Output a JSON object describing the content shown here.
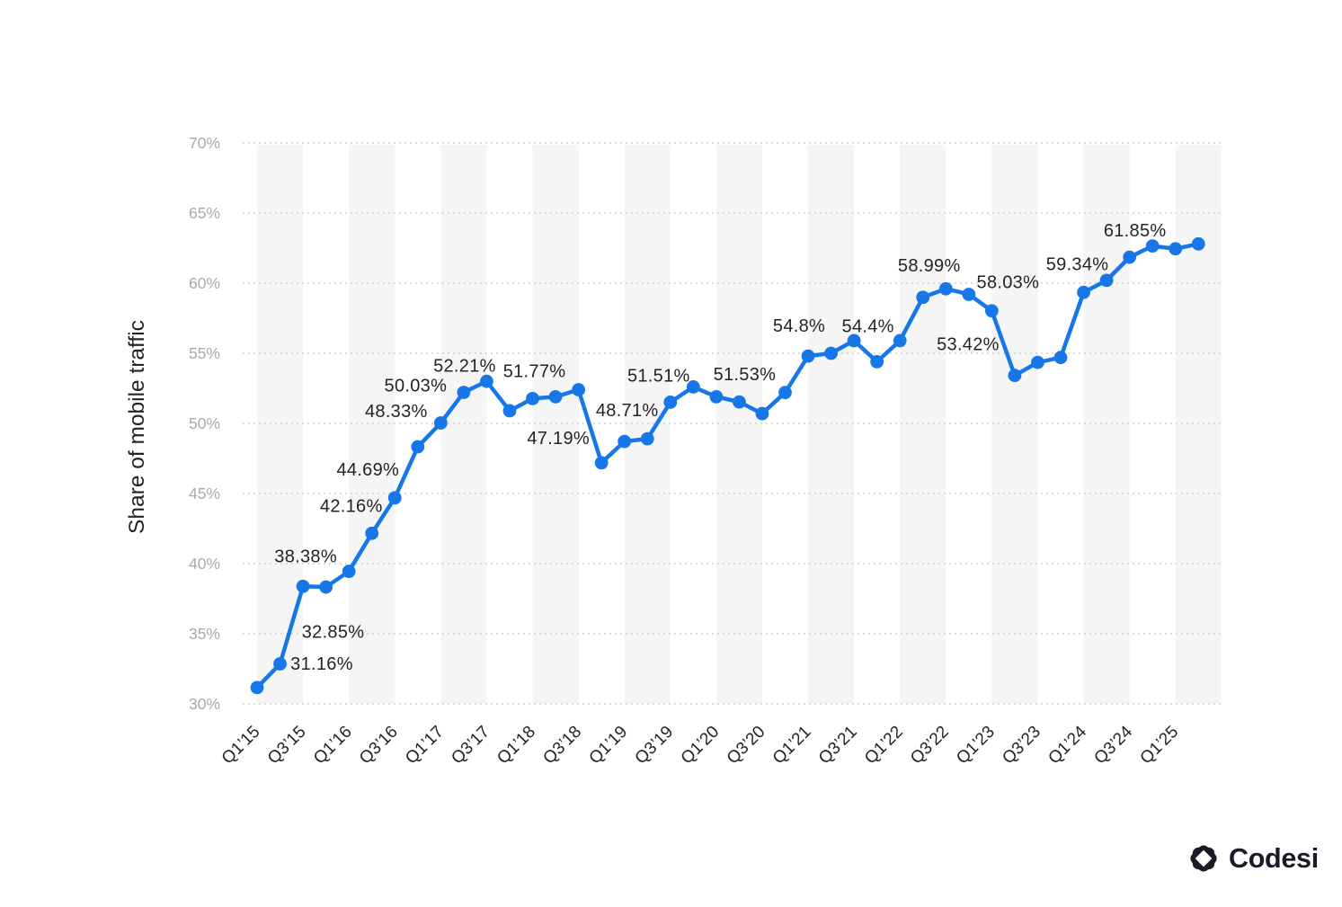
{
  "chart_data": {
    "type": "line",
    "title": "",
    "xlabel": "",
    "ylabel": "Share of mobile traffic",
    "ylim": [
      30,
      70
    ],
    "grid": "horizontal-dotted",
    "legend": "none",
    "y_ticks": [
      "30%",
      "35%",
      "40%",
      "45%",
      "50%",
      "55%",
      "60%",
      "65%",
      "70%"
    ],
    "x_ticks": [
      "Q1’15",
      "Q3’15",
      "Q1’16",
      "Q3’16",
      "Q1’17",
      "Q3’17",
      "Q1’18",
      "Q3’18",
      "Q1’19",
      "Q3’19",
      "Q1’20",
      "Q3’20",
      "Q1’21",
      "Q3’21",
      "Q1’22",
      "Q3’22",
      "Q1’23",
      "Q3’23",
      "Q1’24",
      "Q3’24",
      "Q1’25"
    ],
    "categories": [
      "Q1’15",
      "Q2’15",
      "Q3’15",
      "Q4’15",
      "Q1’16",
      "Q2’16",
      "Q3’16",
      "Q4’16",
      "Q1’17",
      "Q2’17",
      "Q3’17",
      "Q4’17",
      "Q1’18",
      "Q2’18",
      "Q3’18",
      "Q4’18",
      "Q1’19",
      "Q2’19",
      "Q3’19",
      "Q4’19",
      "Q1’20",
      "Q2’20",
      "Q3’20",
      "Q4’20",
      "Q1’21",
      "Q2’21",
      "Q3’21",
      "Q4’21",
      "Q1’22",
      "Q2’22",
      "Q3’22",
      "Q4’22",
      "Q1’23",
      "Q2’23",
      "Q3’23",
      "Q4’23",
      "Q1’24",
      "Q2’24",
      "Q3’24",
      "Q4’24",
      "Q1’25",
      "Q2’25"
    ],
    "values": [
      31.16,
      32.85,
      38.38,
      38.33,
      39.45,
      42.16,
      44.69,
      48.33,
      50.03,
      52.21,
      53.0,
      50.9,
      51.77,
      51.9,
      52.4,
      47.19,
      48.71,
      48.9,
      51.51,
      52.6,
      51.9,
      51.53,
      50.7,
      52.2,
      54.8,
      55.0,
      55.9,
      54.4,
      55.9,
      58.99,
      59.6,
      59.2,
      58.03,
      53.42,
      54.35,
      54.7,
      59.34,
      60.2,
      61.85,
      62.65,
      62.45,
      62.8
    ],
    "point_labels": [
      {
        "index": 0,
        "text": "31.16%"
      },
      {
        "index": 1,
        "text": "32.85%"
      },
      {
        "index": 2,
        "text": "38.38%"
      },
      {
        "index": 5,
        "text": "42.16%"
      },
      {
        "index": 6,
        "text": "44.69%"
      },
      {
        "index": 7,
        "text": "48.33%"
      },
      {
        "index": 8,
        "text": "50.03%"
      },
      {
        "index": 9,
        "text": "52.21%"
      },
      {
        "index": 12,
        "text": "51.77%"
      },
      {
        "index": 15,
        "text": "47.19%"
      },
      {
        "index": 16,
        "text": "48.71%"
      },
      {
        "index": 18,
        "text": "51.51%"
      },
      {
        "index": 21,
        "text": "51.53%"
      },
      {
        "index": 24,
        "text": "54.8%"
      },
      {
        "index": 27,
        "text": "54.4%"
      },
      {
        "index": 29,
        "text": "58.99%"
      },
      {
        "index": 32,
        "text": "58.03%"
      },
      {
        "index": 33,
        "text": "53.42%"
      },
      {
        "index": 36,
        "text": "59.34%"
      },
      {
        "index": 38,
        "text": "61.85%"
      }
    ],
    "colors": {
      "line": "#1777e8",
      "point": "#1777e8",
      "band": "#f5f5f6",
      "grid": "#cbcbcf",
      "y_tick_text": "#a9a9ae",
      "x_tick_text": "#232329",
      "label_text": "#232329",
      "axis_title_text": "#232329"
    }
  },
  "branding": {
    "logo_text": "Codesi",
    "logo_color": "#1b1b27"
  }
}
